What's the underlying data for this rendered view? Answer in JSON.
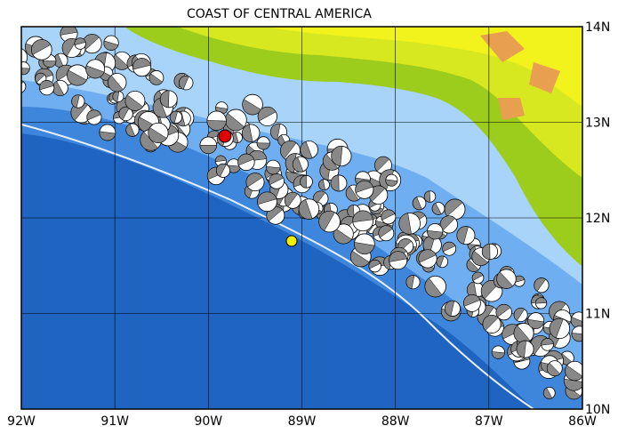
{
  "map": {
    "title": "COAST OF CENTRAL AMERICA",
    "x_labels": [
      "92W",
      "91W",
      "90W",
      "89W",
      "88W",
      "87W",
      "86W"
    ],
    "y_labels": [
      "14N",
      "13N",
      "12N",
      "11N",
      "10N"
    ]
  }
}
